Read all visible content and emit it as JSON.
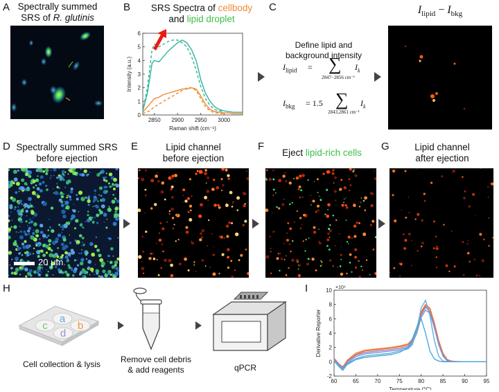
{
  "panels": {
    "A": {
      "letter": "A",
      "title_line1": "Spectrally summed",
      "title_line2_prefix": "SRS of ",
      "title_line2_italic": "R. glutinis"
    },
    "B": {
      "letter": "B",
      "title_prefix": "SRS Spectra of ",
      "title_cellbody": "cellbody",
      "title_and": "and ",
      "title_lipid": "lipid droplet"
    },
    "C": {
      "letter": "C",
      "define_line1": "Define lipid and",
      "define_line2": "background intensity",
      "lipid_eq_lhs": "I",
      "lipid_eq_lhs_sub": "lipid",
      "lipid_sum_range": "2847−2856 cm⁻¹",
      "bkg_eq_lhs": "I",
      "bkg_eq_lhs_sub": "bkg",
      "bkg_coef": "= 1.5",
      "bkg_sum_range": "2843,2861 cm⁻¹",
      "sum_symbol": "∑",
      "term": "I",
      "term_sub": "k",
      "equals": "=",
      "img_title_I1": "I",
      "img_title_sub1": "lipid",
      "img_title_minus": " − ",
      "img_title_I2": "I",
      "img_title_sub2": "bkg"
    },
    "D": {
      "letter": "D",
      "title_line1": "Spectrally summed SRS",
      "title_line2": "before ejection",
      "scalebar": "20 μm"
    },
    "E": {
      "letter": "E",
      "title_line1": "Lipid channel",
      "title_line2": "before ejection"
    },
    "F": {
      "letter": "F",
      "title_prefix": "Eject ",
      "title_colored": "lipid-rich cells"
    },
    "G": {
      "letter": "G",
      "title_line1": "Lipid channel",
      "title_line2": "after ejection"
    },
    "H": {
      "letter": "H",
      "plate_labels": [
        "a",
        "b",
        "c",
        "d"
      ],
      "cap1": "Cell collection & lysis",
      "cap2_line1": "Remove cell debris",
      "cap2_line2": "& add reagents",
      "cap3": "qPCR"
    },
    "I": {
      "letter": "I"
    }
  },
  "colors": {
    "cellbody": "#f08a30",
    "lipid": "#3cbf4a",
    "arrow": "#444444",
    "red_arrow": "#e81c12",
    "plate_a": "#6ba4d8",
    "plate_b": "#f0903a",
    "plate_c": "#6cc464",
    "plate_d": "#9c8fcf"
  },
  "chart_data": [
    {
      "type": "line",
      "panel": "B",
      "xlabel": "Raman shift (cm⁻¹)",
      "ylabel": "Intensity (a.u.)",
      "xlim": [
        2825,
        3040
      ],
      "ylim": [
        0,
        6
      ],
      "xticks": [
        2850,
        2900,
        2950,
        3000
      ],
      "yticks": [
        0,
        1,
        2,
        3,
        4,
        5,
        6
      ],
      "series": [
        {
          "color": "#2db39a",
          "dash": false,
          "x": [
            2825,
            2835,
            2845,
            2850,
            2860,
            2870,
            2880,
            2890,
            2900,
            2910,
            2920,
            2930,
            2940,
            2950,
            2960,
            2970,
            2980,
            2990,
            3000,
            3010,
            3020,
            3030,
            3040
          ],
          "values": [
            0.3,
            1.6,
            3.8,
            4.0,
            3.9,
            4.3,
            4.7,
            5.0,
            5.3,
            5.5,
            5.3,
            4.8,
            4.0,
            2.6,
            1.6,
            1.0,
            0.6,
            0.4,
            0.3,
            0.25,
            0.2,
            0.2,
            0.2
          ]
        },
        {
          "color": "#2db39a",
          "dash": true,
          "x": [
            2825,
            2835,
            2845,
            2850,
            2860,
            2870,
            2880,
            2890,
            2900,
            2910,
            2920,
            2930,
            2940,
            2950,
            2960,
            2970,
            2980,
            2990,
            3000
          ],
          "values": [
            0.3,
            2.0,
            4.8,
            5.2,
            5.0,
            5.2,
            5.4,
            5.5,
            5.5,
            5.3,
            5.0,
            4.3,
            3.3,
            2.1,
            1.2,
            0.7,
            0.4,
            0.3,
            0.25
          ]
        },
        {
          "color": "#f08a30",
          "dash": false,
          "x": [
            2825,
            2840,
            2850,
            2860,
            2870,
            2880,
            2890,
            2900,
            2910,
            2920,
            2930,
            2940,
            2950,
            2960,
            2970,
            2980,
            2990,
            3000,
            3010,
            3020,
            3040
          ],
          "values": [
            0.2,
            0.8,
            1.2,
            1.3,
            1.5,
            1.6,
            1.7,
            1.8,
            1.9,
            1.9,
            2.0,
            1.9,
            1.4,
            0.8,
            0.4,
            0.25,
            0.2,
            0.15,
            0.15,
            0.1,
            0.1
          ]
        },
        {
          "color": "#f08a30",
          "dash": true,
          "x": [
            2825,
            2840,
            2850,
            2860,
            2870,
            2880,
            2890,
            2900,
            2910,
            2920,
            2930,
            2940,
            2950,
            2960,
            2970,
            2980,
            3000
          ],
          "values": [
            0.1,
            0.3,
            0.6,
            0.8,
            1.0,
            1.2,
            1.4,
            1.6,
            1.8,
            2.0,
            2.0,
            1.8,
            1.2,
            0.6,
            0.3,
            0.15,
            0.1
          ]
        }
      ]
    },
    {
      "type": "line",
      "panel": "I",
      "xlabel": "Temperature (°C)",
      "ylabel": "Derivative Reporter",
      "exponent_label": "×10⁴",
      "xlim": [
        60,
        95
      ],
      "ylim": [
        -2,
        10
      ],
      "xticks": [
        60,
        65,
        70,
        75,
        80,
        85,
        90,
        95
      ],
      "yticks": [
        -2,
        0,
        2,
        4,
        6,
        8,
        10
      ],
      "x": [
        60,
        61,
        62,
        63,
        65,
        67,
        70,
        73,
        75,
        77,
        78,
        79,
        80,
        81,
        82,
        83,
        84,
        85,
        86,
        87,
        88,
        90,
        95
      ],
      "series": [
        {
          "color": "#f0804a",
          "values": [
            0.5,
            -0.2,
            -0.8,
            0.2,
            1.2,
            1.6,
            1.8,
            2.0,
            2.2,
            2.5,
            3.2,
            4.8,
            7.0,
            8.0,
            7.5,
            5.5,
            3.0,
            1.2,
            0.3,
            0.1,
            0.05,
            0,
            0
          ]
        },
        {
          "color": "#e8703a",
          "values": [
            0.4,
            -0.3,
            -0.7,
            0.1,
            1.0,
            1.5,
            1.7,
            1.9,
            2.1,
            2.4,
            3.0,
            4.5,
            6.8,
            7.8,
            7.3,
            5.2,
            2.8,
            1.0,
            0.2,
            0.05,
            0,
            0,
            0
          ]
        },
        {
          "color": "#9a7fbf",
          "values": [
            0.3,
            -0.3,
            -0.9,
            0.0,
            0.9,
            1.3,
            1.5,
            1.7,
            1.9,
            2.2,
            2.8,
            4.2,
            6.5,
            7.6,
            7.0,
            5.0,
            2.6,
            0.9,
            0.2,
            0,
            0,
            0,
            0
          ]
        },
        {
          "color": "#7d95c8",
          "values": [
            0.2,
            -0.5,
            -1.0,
            -0.2,
            0.7,
            1.1,
            1.3,
            1.5,
            1.7,
            2.0,
            2.6,
            4.0,
            6.2,
            7.2,
            6.8,
            4.8,
            2.4,
            0.8,
            0.1,
            0,
            0,
            0,
            0
          ]
        },
        {
          "color": "#5fb0e0",
          "values": [
            0.2,
            -0.4,
            -1.1,
            -0.3,
            0.4,
            0.8,
            1.0,
            1.2,
            1.5,
            1.8,
            2.4,
            4.5,
            7.5,
            8.6,
            6.5,
            3.0,
            0.8,
            0.1,
            0,
            0,
            0,
            0,
            0
          ]
        },
        {
          "color": "#4aa8e0",
          "values": [
            0.1,
            -0.6,
            -1.2,
            -0.4,
            0.3,
            0.6,
            0.8,
            1.0,
            1.3,
            2.0,
            3.2,
            4.8,
            6.0,
            4.0,
            1.5,
            0.4,
            0.1,
            0,
            0,
            0,
            0,
            0,
            0
          ]
        }
      ]
    }
  ]
}
